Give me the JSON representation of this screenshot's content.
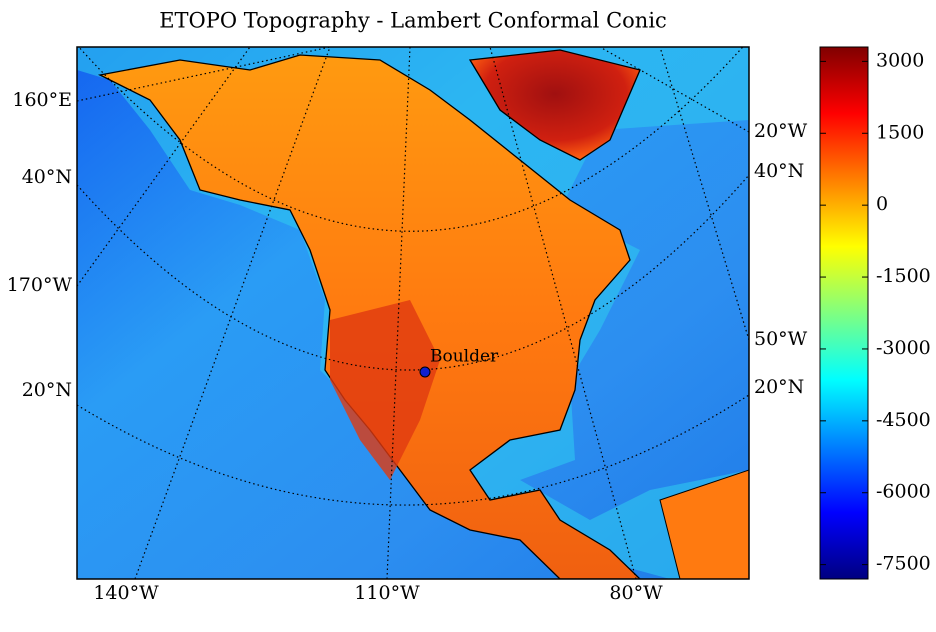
{
  "title": "ETOPO Topography - Lambert Conformal Conic",
  "map": {
    "left_labels": [
      "160°E",
      "40°N",
      "170°W",
      "20°N"
    ],
    "right_labels": [
      "20°W",
      "40°N",
      "50°W",
      "20°N"
    ],
    "bottom_labels": [
      "140°W",
      "110°W",
      "80°W"
    ],
    "markers": [
      {
        "label": "Boulder"
      }
    ]
  },
  "colorbar": {
    "colormap": "jet",
    "lim": [
      -7800,
      3300
    ],
    "ticks": [
      3000,
      1500,
      0,
      -1500,
      -3000,
      -4500,
      -6000,
      -7500
    ]
  }
}
